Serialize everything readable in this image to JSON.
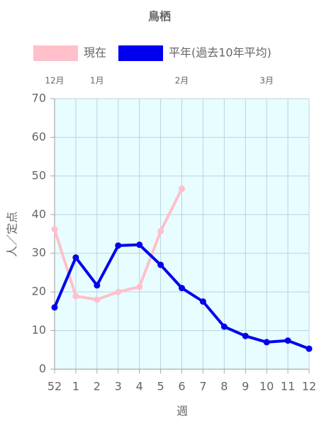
{
  "chart_data": {
    "type": "line",
    "title": "鳥栖",
    "categories": [
      "52",
      "1",
      "2",
      "3",
      "4",
      "5",
      "6",
      "7",
      "8",
      "9",
      "10",
      "11",
      "12"
    ],
    "month_labels": [
      "12月",
      null,
      "1月",
      null,
      null,
      null,
      "2月",
      null,
      null,
      null,
      "3月",
      null,
      null
    ],
    "series": [
      {
        "name": "現在",
        "color": "#ffc0cb",
        "values": [
          36.2,
          18.9,
          18.0,
          20.0,
          21.3,
          35.7,
          46.7,
          null,
          null,
          null,
          null,
          null,
          null
        ]
      },
      {
        "name": "平年(過去10年平均)",
        "color": "#0000ee",
        "values": [
          16.0,
          28.9,
          21.7,
          32.0,
          32.2,
          27.0,
          21.0,
          17.5,
          11.0,
          8.6,
          7.0,
          7.4,
          5.3
        ]
      }
    ],
    "ylim": [
      0,
      70
    ],
    "yticks": [
      0,
      10,
      20,
      30,
      40,
      50,
      60,
      70
    ],
    "y_label": "人／定点",
    "x_label": "週",
    "grid": true,
    "plot_background": "#e8fdff"
  }
}
